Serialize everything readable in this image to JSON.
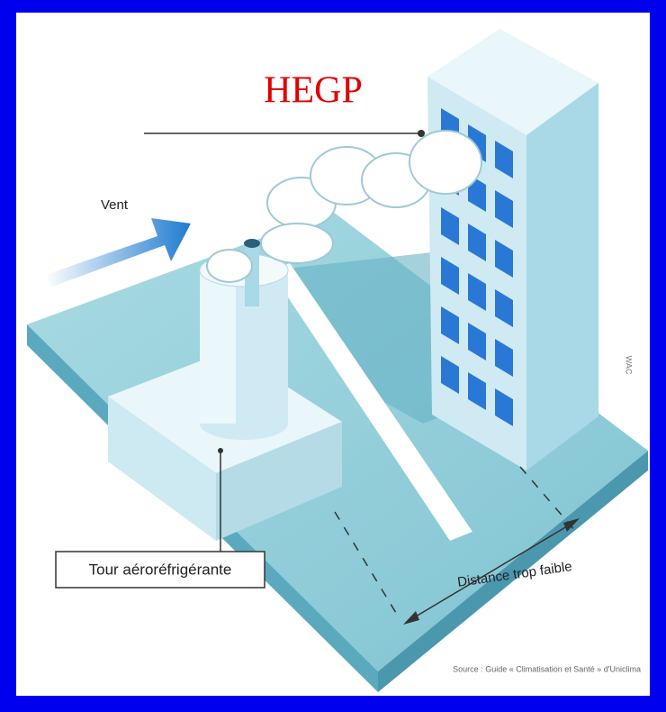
{
  "title": "HEGP",
  "labels": {
    "wind": "Vent",
    "tower": "Tour aéroréfrigérante",
    "distance": "Distance trop faible",
    "watermark": "WAC"
  },
  "source": "Source : Guide « Climatisation et Santé » d'Uniclima"
}
